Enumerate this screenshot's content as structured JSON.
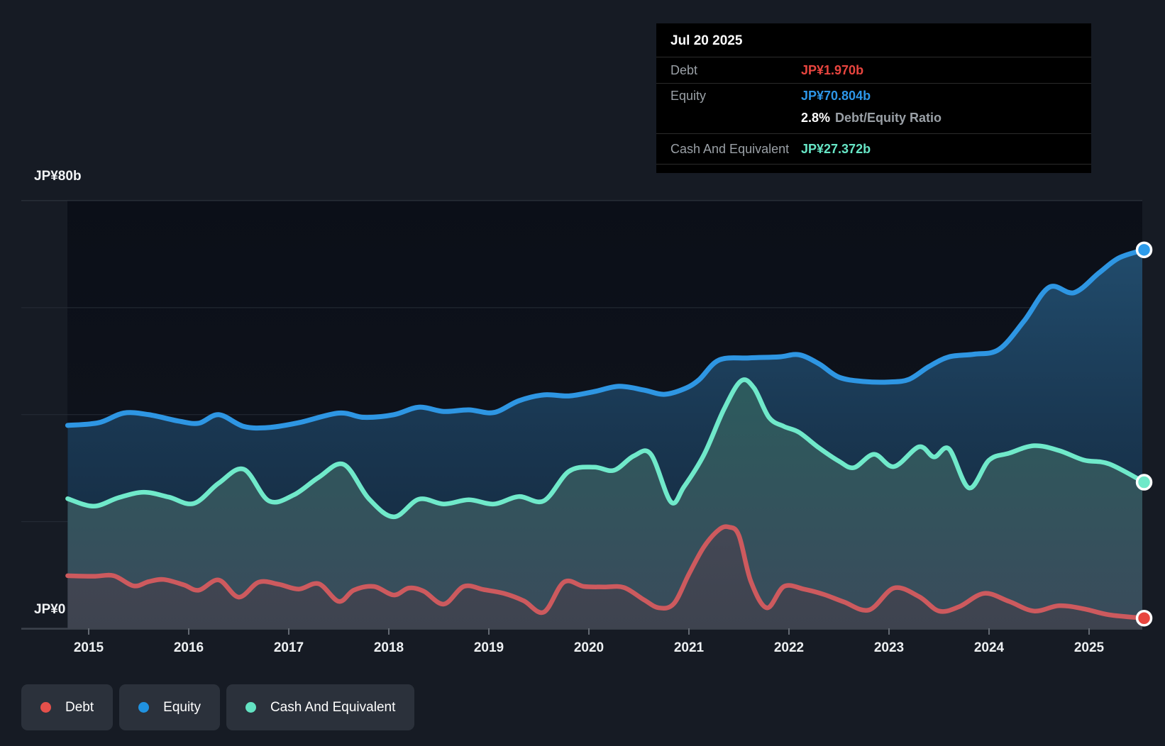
{
  "tooltip": {
    "date": "Jul 20 2025",
    "debt_label": "Debt",
    "debt_value": "JP¥1.970b",
    "equity_label": "Equity",
    "equity_value": "JP¥70.804b",
    "ratio_value": "2.8%",
    "ratio_label": "Debt/Equity Ratio",
    "cash_label": "Cash And Equivalent",
    "cash_value": "JP¥27.372b"
  },
  "axes": {
    "y_top_label": "JP¥80b",
    "y_zero_label": "JP¥0",
    "x_years": [
      "2015",
      "2016",
      "2017",
      "2018",
      "2019",
      "2020",
      "2021",
      "2022",
      "2023",
      "2024",
      "2025"
    ]
  },
  "legend": [
    {
      "label": "Debt",
      "color": "#e4504b"
    },
    {
      "label": "Equity",
      "color": "#2092e0"
    },
    {
      "label": "Cash And Equivalent",
      "color": "#63e2c2"
    }
  ],
  "chart_data": {
    "type": "area",
    "title": "Debt, Equity and Cash history",
    "x_unit": "year",
    "y_unit": "JP¥ billions",
    "ylim": [
      0,
      80
    ],
    "gridlines_b": [
      80,
      60,
      40,
      20
    ],
    "x_ticks": [
      2015,
      2016,
      2017,
      2018,
      2019,
      2020,
      2021,
      2022,
      2023,
      2024,
      2025
    ],
    "last_point_date": "Jul 20 2025",
    "series": [
      {
        "name": "Equity",
        "line_color": "#2e96e3",
        "dot_color": "#2d9ceb",
        "points": [
          [
            2014.79,
            38.0
          ],
          [
            2015.1,
            38.5
          ],
          [
            2015.35,
            40.3
          ],
          [
            2015.6,
            40.0
          ],
          [
            2015.9,
            38.8
          ],
          [
            2016.1,
            38.4
          ],
          [
            2016.3,
            40.0
          ],
          [
            2016.55,
            37.8
          ],
          [
            2016.8,
            37.6
          ],
          [
            2017.1,
            38.5
          ],
          [
            2017.5,
            40.3
          ],
          [
            2017.75,
            39.5
          ],
          [
            2018.05,
            40.0
          ],
          [
            2018.3,
            41.4
          ],
          [
            2018.55,
            40.6
          ],
          [
            2018.8,
            40.9
          ],
          [
            2019.05,
            40.4
          ],
          [
            2019.3,
            42.6
          ],
          [
            2019.55,
            43.7
          ],
          [
            2019.8,
            43.5
          ],
          [
            2020.05,
            44.3
          ],
          [
            2020.3,
            45.3
          ],
          [
            2020.55,
            44.6
          ],
          [
            2020.75,
            43.8
          ],
          [
            2020.95,
            44.8
          ],
          [
            2021.1,
            46.5
          ],
          [
            2021.3,
            50.2
          ],
          [
            2021.6,
            50.6
          ],
          [
            2021.9,
            50.8
          ],
          [
            2022.1,
            51.2
          ],
          [
            2022.3,
            49.5
          ],
          [
            2022.5,
            47.0
          ],
          [
            2022.75,
            46.2
          ],
          [
            2023.0,
            46.1
          ],
          [
            2023.2,
            46.6
          ],
          [
            2023.4,
            49.0
          ],
          [
            2023.6,
            50.8
          ],
          [
            2023.85,
            51.3
          ],
          [
            2024.1,
            52.2
          ],
          [
            2024.35,
            57.5
          ],
          [
            2024.6,
            63.8
          ],
          [
            2024.85,
            62.8
          ],
          [
            2025.1,
            66.5
          ],
          [
            2025.3,
            69.3
          ],
          [
            2025.55,
            70.804
          ]
        ]
      },
      {
        "name": "Cash And Equivalent",
        "line_color": "#70e9ca",
        "dot_color": "#6fe9c9",
        "points": [
          [
            2014.79,
            24.3
          ],
          [
            2015.05,
            22.9
          ],
          [
            2015.3,
            24.5
          ],
          [
            2015.55,
            25.5
          ],
          [
            2015.8,
            24.6
          ],
          [
            2016.05,
            23.4
          ],
          [
            2016.3,
            27.2
          ],
          [
            2016.55,
            29.8
          ],
          [
            2016.8,
            23.9
          ],
          [
            2017.05,
            25.0
          ],
          [
            2017.3,
            28.3
          ],
          [
            2017.55,
            30.7
          ],
          [
            2017.8,
            24.3
          ],
          [
            2018.05,
            20.9
          ],
          [
            2018.3,
            24.2
          ],
          [
            2018.55,
            23.3
          ],
          [
            2018.8,
            24.1
          ],
          [
            2019.05,
            23.3
          ],
          [
            2019.3,
            24.7
          ],
          [
            2019.55,
            23.9
          ],
          [
            2019.8,
            29.4
          ],
          [
            2020.05,
            30.2
          ],
          [
            2020.25,
            29.6
          ],
          [
            2020.45,
            32.3
          ],
          [
            2020.62,
            32.6
          ],
          [
            2020.82,
            23.7
          ],
          [
            2020.95,
            26.5
          ],
          [
            2021.15,
            32.5
          ],
          [
            2021.35,
            41.0
          ],
          [
            2021.52,
            46.3
          ],
          [
            2021.65,
            45.0
          ],
          [
            2021.8,
            39.5
          ],
          [
            2021.95,
            37.8
          ],
          [
            2022.1,
            36.7
          ],
          [
            2022.3,
            33.8
          ],
          [
            2022.5,
            31.3
          ],
          [
            2022.65,
            30.1
          ],
          [
            2022.85,
            32.6
          ],
          [
            2023.05,
            30.3
          ],
          [
            2023.3,
            34.0
          ],
          [
            2023.45,
            32.1
          ],
          [
            2023.6,
            33.6
          ],
          [
            2023.8,
            26.3
          ],
          [
            2024.0,
            31.5
          ],
          [
            2024.2,
            32.8
          ],
          [
            2024.45,
            34.2
          ],
          [
            2024.7,
            33.3
          ],
          [
            2024.95,
            31.5
          ],
          [
            2025.2,
            30.8
          ],
          [
            2025.55,
            27.372
          ]
        ]
      },
      {
        "name": "Debt",
        "line_color": "#cd5a5e",
        "dot_color": "#e8453f",
        "points": [
          [
            2014.79,
            9.9
          ],
          [
            2015.05,
            9.8
          ],
          [
            2015.25,
            9.9
          ],
          [
            2015.45,
            8.0
          ],
          [
            2015.6,
            8.8
          ],
          [
            2015.75,
            9.2
          ],
          [
            2015.95,
            8.2
          ],
          [
            2016.1,
            7.2
          ],
          [
            2016.3,
            9.1
          ],
          [
            2016.5,
            5.9
          ],
          [
            2016.7,
            8.7
          ],
          [
            2016.9,
            8.3
          ],
          [
            2017.1,
            7.4
          ],
          [
            2017.3,
            8.4
          ],
          [
            2017.5,
            5.1
          ],
          [
            2017.65,
            7.2
          ],
          [
            2017.85,
            7.9
          ],
          [
            2018.05,
            6.3
          ],
          [
            2018.2,
            7.6
          ],
          [
            2018.35,
            7.0
          ],
          [
            2018.55,
            4.6
          ],
          [
            2018.75,
            7.9
          ],
          [
            2018.95,
            7.3
          ],
          [
            2019.15,
            6.6
          ],
          [
            2019.35,
            5.2
          ],
          [
            2019.55,
            3.1
          ],
          [
            2019.75,
            8.7
          ],
          [
            2019.95,
            7.9
          ],
          [
            2020.15,
            7.8
          ],
          [
            2020.35,
            7.7
          ],
          [
            2020.55,
            5.4
          ],
          [
            2020.7,
            3.9
          ],
          [
            2020.85,
            4.7
          ],
          [
            2021.0,
            10.2
          ],
          [
            2021.15,
            15.3
          ],
          [
            2021.3,
            18.5
          ],
          [
            2021.4,
            19.0
          ],
          [
            2021.5,
            17.4
          ],
          [
            2021.62,
            8.8
          ],
          [
            2021.78,
            3.9
          ],
          [
            2021.95,
            7.9
          ],
          [
            2022.15,
            7.4
          ],
          [
            2022.35,
            6.4
          ],
          [
            2022.55,
            5.0
          ],
          [
            2022.8,
            3.5
          ],
          [
            2023.05,
            7.6
          ],
          [
            2023.3,
            6.0
          ],
          [
            2023.5,
            3.3
          ],
          [
            2023.7,
            4.1
          ],
          [
            2023.95,
            6.6
          ],
          [
            2024.2,
            5.1
          ],
          [
            2024.45,
            3.3
          ],
          [
            2024.7,
            4.3
          ],
          [
            2024.95,
            3.7
          ],
          [
            2025.2,
            2.6
          ],
          [
            2025.55,
            1.97
          ]
        ]
      }
    ]
  }
}
